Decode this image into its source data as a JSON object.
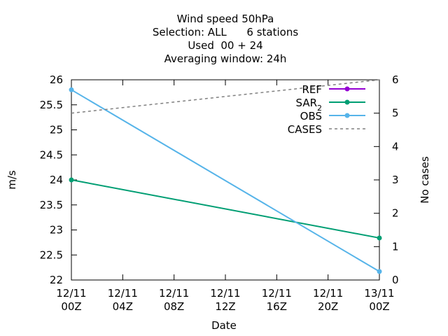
{
  "chart_data": {
    "type": "line",
    "title_lines": [
      "Wind speed 50hPa",
      "Selection: ALL      6 stations",
      "Used  00 + 24",
      "Averaging window: 24h"
    ],
    "xlabel": "Date",
    "ylabel": "m/s",
    "y2label": "No cases",
    "x_ticks": [
      {
        "line1": "12/11",
        "line2": "00Z",
        "hours": 0
      },
      {
        "line1": "12/11",
        "line2": "04Z",
        "hours": 4
      },
      {
        "line1": "12/11",
        "line2": "08Z",
        "hours": 8
      },
      {
        "line1": "12/11",
        "line2": "12Z",
        "hours": 12
      },
      {
        "line1": "12/11",
        "line2": "16Z",
        "hours": 16
      },
      {
        "line1": "12/11",
        "line2": "20Z",
        "hours": 20
      },
      {
        "line1": "13/11",
        "line2": "00Z",
        "hours": 24
      }
    ],
    "xlim": [
      0,
      24
    ],
    "ylim": [
      22,
      26
    ],
    "y_ticks": [
      "22",
      "22.5",
      "23",
      "23.5",
      "24",
      "24.5",
      "25",
      "25.5",
      "26"
    ],
    "y2lim": [
      0,
      6
    ],
    "y2_ticks": [
      "0",
      "1",
      "2",
      "3",
      "4",
      "5",
      "6"
    ],
    "series": [
      {
        "name": "REF",
        "sub": "",
        "color": "#9400d3",
        "axis": "y1",
        "style": "linespoints",
        "x": [],
        "y": []
      },
      {
        "name": "SAR",
        "sub": "2",
        "color": "#009e73",
        "axis": "y1",
        "style": "linespoints",
        "x": [
          0,
          24
        ],
        "y": [
          24.0,
          22.84
        ]
      },
      {
        "name": "OBS",
        "sub": "",
        "color": "#56b4e9",
        "axis": "y1",
        "style": "linespoints",
        "x": [
          0,
          24
        ],
        "y": [
          25.8,
          22.17
        ]
      },
      {
        "name": "CASES",
        "sub": "",
        "color": "#808080",
        "axis": "y2",
        "style": "dashed",
        "x": [
          0,
          24
        ],
        "y": [
          5.0,
          6.0
        ]
      }
    ],
    "legend_position": "top-right",
    "grid": false
  }
}
